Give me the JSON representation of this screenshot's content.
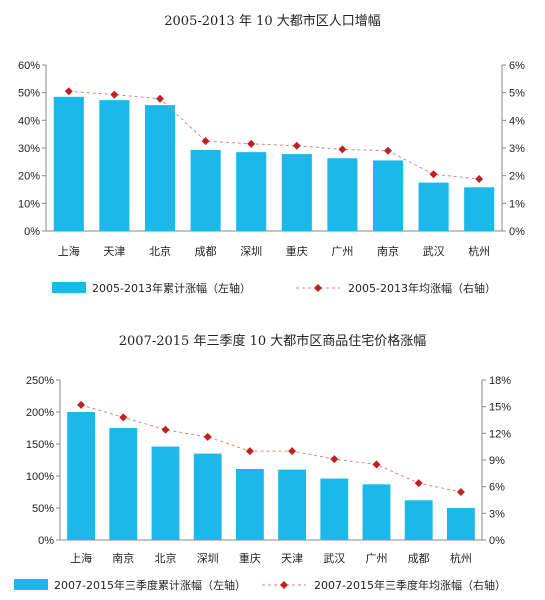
{
  "chart_data": [
    {
      "type": "bar",
      "title": "2005-2013 年 10 大都市区人口增幅",
      "categories": [
        "上海",
        "天津",
        "北京",
        "成都",
        "深圳",
        "重庆",
        "广州",
        "南京",
        "武汉",
        "杭州"
      ],
      "series": [
        {
          "name": "2005-2013年累计涨幅（左轴）",
          "type": "bar",
          "axis": "left",
          "values": [
            48.5,
            47.3,
            45.5,
            29.3,
            28.5,
            27.8,
            26.3,
            25.5,
            17.5,
            15.8
          ]
        },
        {
          "name": "2005-2013年均涨幅（右轴）",
          "type": "line",
          "axis": "right",
          "values": [
            5.05,
            4.93,
            4.78,
            3.25,
            3.15,
            3.08,
            2.95,
            2.9,
            2.05,
            1.88
          ]
        }
      ],
      "yleft": {
        "min": 0,
        "max": 60,
        "step": 10,
        "suffix": "%"
      },
      "yright": {
        "min": 0,
        "max": 6,
        "step": 1,
        "suffix": "%"
      },
      "legend": "bottom",
      "colors": {
        "bar": "#1bb8ea",
        "line": "#e08080",
        "marker": "#c02020"
      }
    },
    {
      "type": "bar",
      "title": "2007-2015 年三季度 10 大都市区商品住宅价格涨幅",
      "categories": [
        "上海",
        "南京",
        "北京",
        "深圳",
        "重庆",
        "天津",
        "武汉",
        "广州",
        "成都",
        "杭州"
      ],
      "series": [
        {
          "name": "2007-2015年三季度累计涨幅（左轴）",
          "type": "bar",
          "axis": "left",
          "values": [
            200,
            175,
            146,
            135,
            111,
            110,
            96,
            87,
            62,
            50
          ]
        },
        {
          "name": "2007-2015年三季度年均涨幅（右轴）",
          "type": "line",
          "axis": "right",
          "values": [
            15.2,
            13.8,
            12.4,
            11.6,
            10.0,
            10.0,
            9.1,
            8.5,
            6.4,
            5.4
          ]
        }
      ],
      "yleft": {
        "min": 0,
        "max": 250,
        "step": 50,
        "suffix": "%"
      },
      "yright": {
        "min": 0,
        "max": 18,
        "step": 3,
        "suffix": "%"
      },
      "legend": "bottom",
      "colors": {
        "bar": "#1bb8ea",
        "line": "#e08080",
        "marker": "#c02020"
      }
    }
  ]
}
